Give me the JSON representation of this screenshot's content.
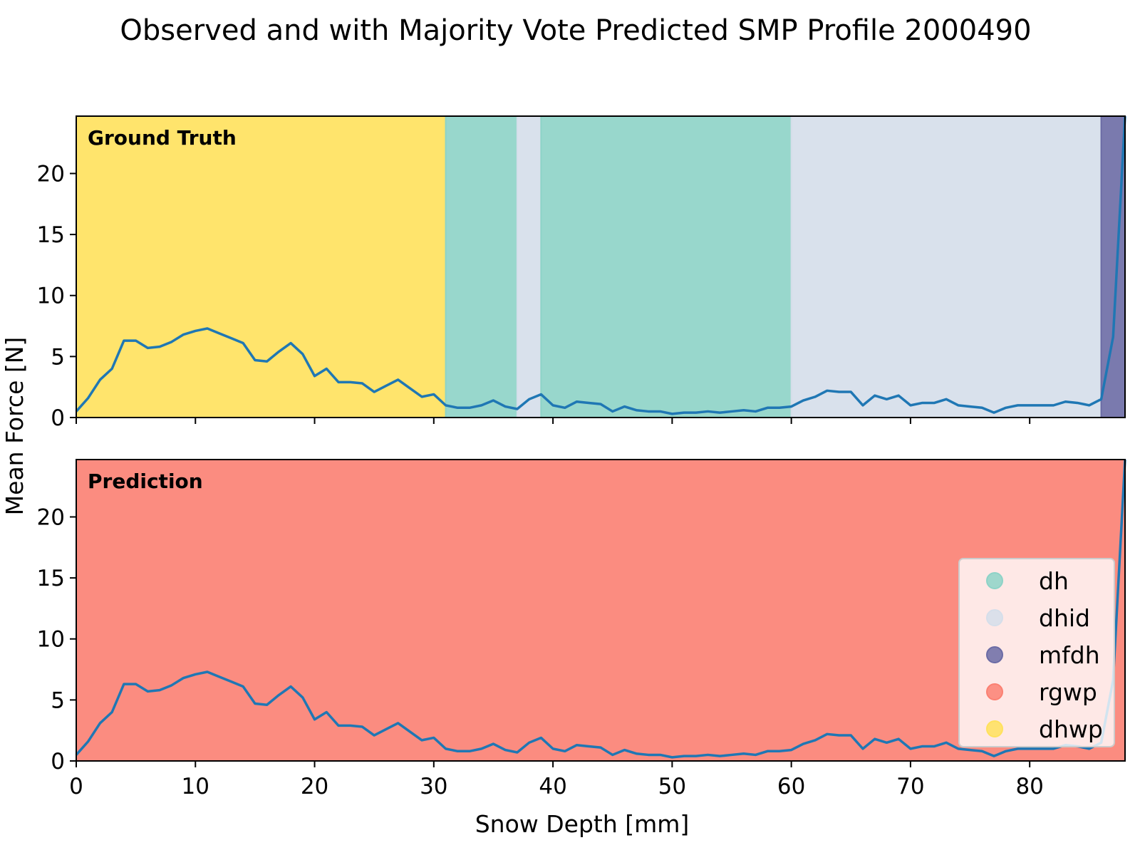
{
  "chart_data": {
    "type": "line",
    "title": "Observed and with Majority Vote Predicted SMP Profile 2000490",
    "xlabel": "Snow Depth [mm]",
    "ylabel": "Mean Force [N]",
    "xlim": [
      0,
      88
    ],
    "ylim": [
      0,
      24.7
    ],
    "xticks": [
      0,
      10,
      20,
      30,
      40,
      50,
      60,
      70,
      80
    ],
    "yticks": [
      0,
      5,
      10,
      15,
      20
    ],
    "grid": false,
    "legend_position": "bottom-right",
    "classes": [
      {
        "name": "dh",
        "color": "#8dd3c7"
      },
      {
        "name": "dhid",
        "color": "#d5deea"
      },
      {
        "name": "mfdh",
        "color": "#6b6ba5"
      },
      {
        "name": "rgwp",
        "color": "#fb8072"
      },
      {
        "name": "dhwp",
        "color": "#ffe15c"
      }
    ],
    "series": [
      {
        "color": "#1f77b4",
        "x": [
          0,
          1,
          2,
          3,
          4,
          5,
          6,
          7,
          8,
          9,
          10,
          11,
          12,
          13,
          14,
          15,
          16,
          17,
          18,
          19,
          20,
          21,
          22,
          23,
          24,
          25,
          26,
          27,
          28,
          29,
          30,
          31,
          32,
          33,
          34,
          35,
          36,
          37,
          38,
          39,
          40,
          41,
          42,
          43,
          44,
          45,
          46,
          47,
          48,
          49,
          50,
          51,
          52,
          53,
          54,
          55,
          56,
          57,
          58,
          59,
          60,
          61,
          62,
          63,
          64,
          65,
          66,
          67,
          68,
          69,
          70,
          71,
          72,
          73,
          74,
          75,
          76,
          77,
          78,
          79,
          80,
          81,
          82,
          83,
          84,
          85,
          86,
          87,
          88
        ],
        "y": [
          0.5,
          1.6,
          3.1,
          4.0,
          6.3,
          6.3,
          5.7,
          5.8,
          6.2,
          6.8,
          7.1,
          7.3,
          6.9,
          6.5,
          6.1,
          4.7,
          4.6,
          5.4,
          6.1,
          5.2,
          3.4,
          4.0,
          2.9,
          2.9,
          2.8,
          2.1,
          2.6,
          3.1,
          2.4,
          1.7,
          1.9,
          1.0,
          0.8,
          0.8,
          1.0,
          1.4,
          0.9,
          0.7,
          1.5,
          1.9,
          1.0,
          0.8,
          1.3,
          1.2,
          1.1,
          0.5,
          0.9,
          0.6,
          0.5,
          0.5,
          0.3,
          0.4,
          0.4,
          0.5,
          0.4,
          0.5,
          0.6,
          0.5,
          0.8,
          0.8,
          0.9,
          1.4,
          1.7,
          2.2,
          2.1,
          2.1,
          1.0,
          1.8,
          1.5,
          1.8,
          1.0,
          1.2,
          1.2,
          1.5,
          1.0,
          0.9,
          0.8,
          0.4,
          0.8,
          1.0,
          1.0,
          1.0,
          1.0,
          1.3,
          1.2,
          1.0,
          1.5,
          6.6,
          24.7
        ]
      }
    ],
    "panels": [
      {
        "label": "Ground Truth",
        "segments": [
          {
            "class": "dhwp",
            "start": 0,
            "end": 31
          },
          {
            "class": "dh",
            "start": 31,
            "end": 37
          },
          {
            "class": "dhid",
            "start": 37,
            "end": 39
          },
          {
            "class": "dh",
            "start": 39,
            "end": 60
          },
          {
            "class": "dhid",
            "start": 60,
            "end": 86
          },
          {
            "class": "mfdh",
            "start": 86,
            "end": 88
          }
        ]
      },
      {
        "label": "Prediction",
        "segments": [
          {
            "class": "rgwp",
            "start": 0,
            "end": 88
          }
        ]
      }
    ]
  }
}
